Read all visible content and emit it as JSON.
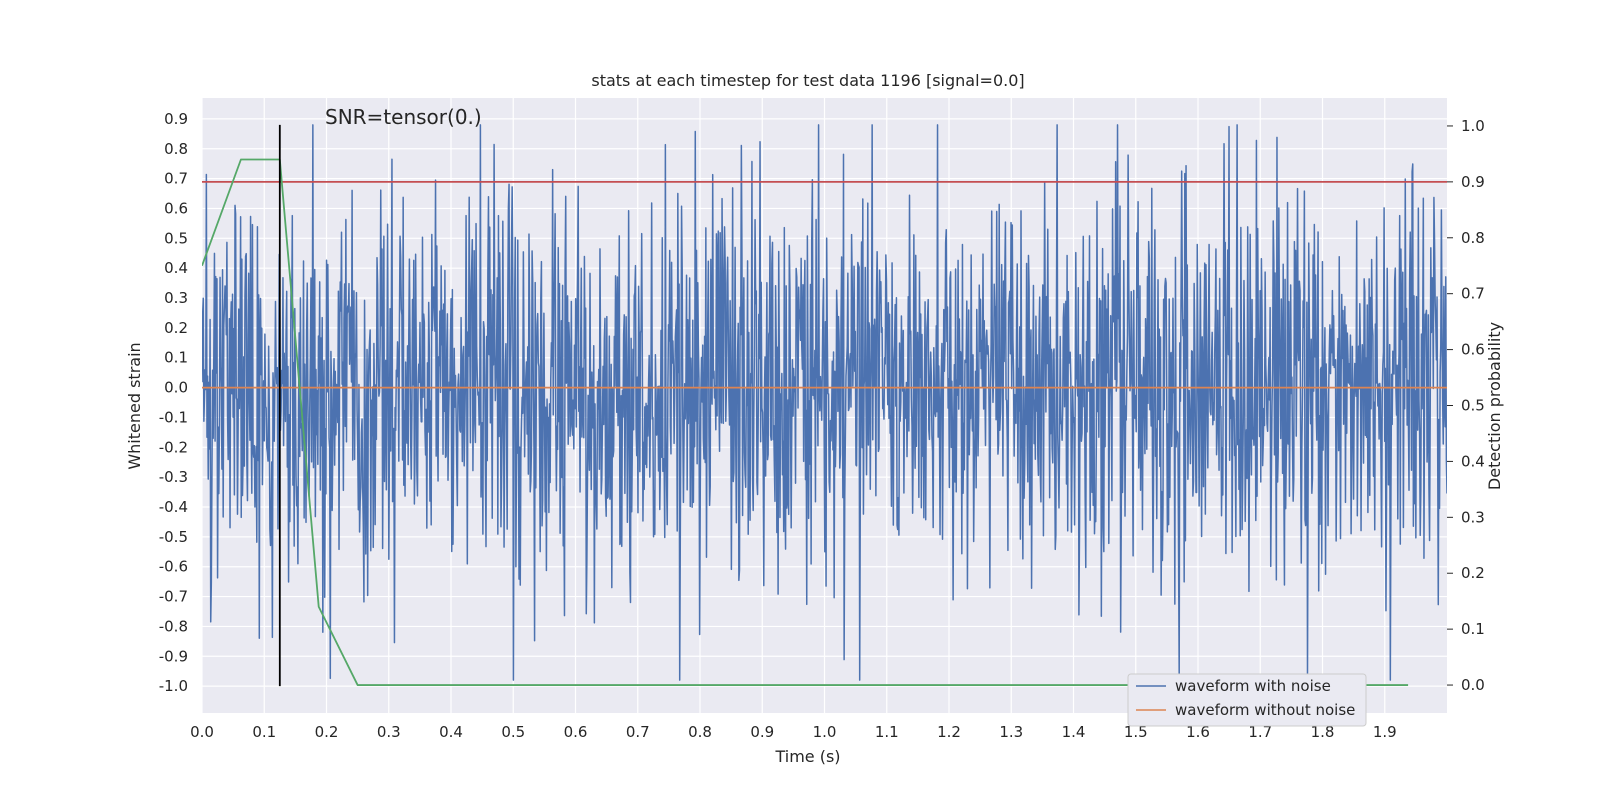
{
  "chart_data": {
    "type": "line",
    "title": "stats at each timestep for test data 1196 [signal=0.0]",
    "xlabel": "Time (s)",
    "ylabel": "Whitened strain",
    "y2label": "Detection probability",
    "annotation": "SNR=tensor(0.)",
    "xlim": [
      0.0,
      2.0
    ],
    "ylim": [
      -1.09,
      0.97
    ],
    "y2lim": [
      -0.05,
      1.05
    ],
    "xticks": [
      "0.0",
      "0.1",
      "0.2",
      "0.3",
      "0.4",
      "0.5",
      "0.6",
      "0.7",
      "0.8",
      "0.9",
      "1.0",
      "1.1",
      "1.2",
      "1.3",
      "1.4",
      "1.5",
      "1.6",
      "1.7",
      "1.8",
      "1.9"
    ],
    "yticks": [
      "0.9",
      "0.8",
      "0.7",
      "0.6",
      "0.5",
      "0.4",
      "0.3",
      "0.2",
      "0.1",
      "0.0",
      "-0.1",
      "-0.2",
      "-0.3",
      "-0.4",
      "-0.5",
      "-0.6",
      "-0.7",
      "-0.8",
      "-0.9",
      "-1.0"
    ],
    "y2ticks": [
      "1.0",
      "0.9",
      "0.8",
      "0.7",
      "0.6",
      "0.5",
      "0.4",
      "0.3",
      "0.2",
      "0.1",
      "0.0"
    ],
    "grid": true,
    "legend_position": "bottom-right",
    "series": [
      {
        "name": "waveform with noise",
        "color": "#4c72b0",
        "axis": "left",
        "kind": "noise",
        "n_points": 2000,
        "seed": 1196,
        "std": 0.33,
        "x_range": [
          0.0,
          2.0
        ]
      },
      {
        "name": "waveform without noise",
        "color": "#dd8452",
        "axis": "left",
        "x": [
          0.0,
          2.0
        ],
        "y": [
          0.0,
          0.0
        ]
      },
      {
        "name": "threshold",
        "color": "#c44e52",
        "axis": "right",
        "x": [
          0.0,
          2.0
        ],
        "y": [
          0.9,
          0.9
        ]
      },
      {
        "name": "detection probability",
        "color": "#55a868",
        "axis": "right",
        "x": [
          0.0,
          0.0625,
          0.125,
          0.1875,
          0.25,
          0.3125,
          0.375,
          0.4375,
          0.5,
          0.5625,
          0.625,
          0.6875,
          0.75,
          0.8125,
          0.875,
          0.9375,
          1.0,
          1.0625,
          1.125,
          1.1875,
          1.25,
          1.3125,
          1.375,
          1.4375,
          1.5,
          1.5625,
          1.625,
          1.6875,
          1.75,
          1.8125,
          1.875,
          1.9375
        ],
        "y": [
          0.75,
          0.94,
          0.94,
          0.14,
          0.0,
          0.0,
          0.0,
          0.0,
          0.0,
          0.0,
          0.0,
          0.0,
          0.0,
          0.0,
          0.0,
          0.0,
          0.0,
          0.0,
          0.0,
          0.0,
          0.0,
          0.0,
          0.0,
          0.0,
          0.0,
          0.0,
          0.0,
          0.0,
          0.0,
          0.0,
          0.0,
          0.0
        ]
      },
      {
        "name": "marker",
        "color": "#000000",
        "axis": "left",
        "x": [
          0.125,
          0.125
        ],
        "y": [
          -1.0,
          0.88
        ]
      }
    ],
    "legend": [
      "waveform with noise",
      "waveform without noise"
    ]
  }
}
